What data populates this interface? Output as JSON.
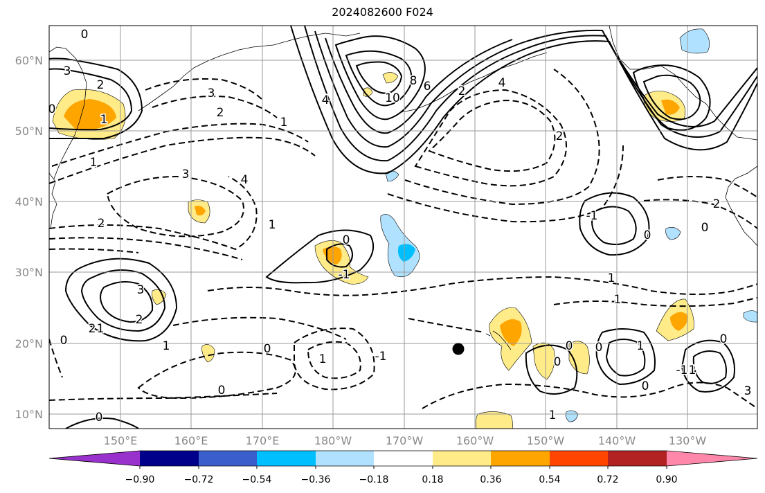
{
  "title": "2024082600 F024",
  "lat_labels": [
    "60°N",
    "50°N",
    "40°N",
    "30°N",
    "20°N",
    "10°N"
  ],
  "lon_labels": [
    "150°E",
    "160°E",
    "170°E",
    "180°W",
    "170°W",
    "160°W",
    "150°W",
    "140°W",
    "130°W"
  ],
  "colorbar": {
    "tick_labels": [
      "−0.90",
      "−0.72",
      "−0.54",
      "−0.36",
      "−0.18",
      "0.18",
      "0.36",
      "0.54",
      "0.72",
      "0.90"
    ],
    "colors": [
      "#9932cc",
      "#00008b",
      "#3a5fcd",
      "#00bfff",
      "#b0e2ff",
      "#ffffff",
      "#ffeb87",
      "#ffa500",
      "#ff4500",
      "#b22222",
      "#ff88aa"
    ]
  },
  "contour_labels": [
    "0",
    "3",
    "2",
    "1",
    "1",
    "0",
    "6",
    "8",
    "10",
    "4",
    "2",
    "4",
    "3",
    "2",
    "1",
    "2",
    "3",
    "4",
    "2",
    "1",
    "0",
    "-1",
    "2",
    "3",
    "1",
    "2",
    "1",
    "0",
    "1",
    "0",
    "-1",
    "0",
    "1",
    "1",
    "0",
    "1",
    "0",
    "0",
    "2",
    "0",
    "-1",
    "0",
    "-1",
    "0",
    "2",
    "3",
    "2",
    "1",
    "0",
    "1",
    "0"
  ]
}
